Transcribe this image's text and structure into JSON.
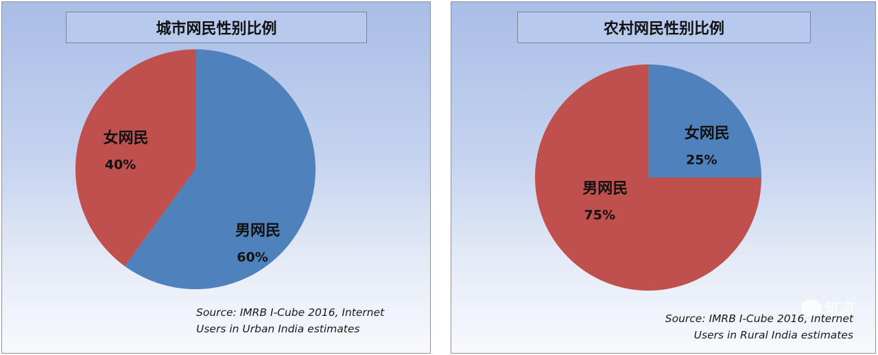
{
  "charts": [
    {
      "id": "urban",
      "title": "城市网民性别比例",
      "source_lines": [
        "Source: IMRB I-Cube 2016, Internet",
        "Users in Urban India estimates"
      ]
    },
    {
      "id": "rural",
      "title": "农村网民性别比例",
      "source_lines": [
        "Source: IMRB I-Cube 2016, Internet",
        "Users in Rural India estimates"
      ]
    }
  ],
  "chart_data": [
    {
      "type": "pie",
      "title": "城市网民性别比例",
      "slices": [
        {
          "label": "男网民",
          "value": 60,
          "value_label": "60%",
          "color": "#4f81bd"
        },
        {
          "label": "女网民",
          "value": 40,
          "value_label": "40%",
          "color": "#c0504d"
        }
      ]
    },
    {
      "type": "pie",
      "title": "农村网民性别比例",
      "slices": [
        {
          "label": "女网民",
          "value": 25,
          "value_label": "25%",
          "color": "#4f81bd"
        },
        {
          "label": "男网民",
          "value": 75,
          "value_label": "75%",
          "color": "#c0504d"
        }
      ]
    }
  ],
  "watermark": {
    "text": "筑道",
    "icon": "wechat-icon"
  }
}
